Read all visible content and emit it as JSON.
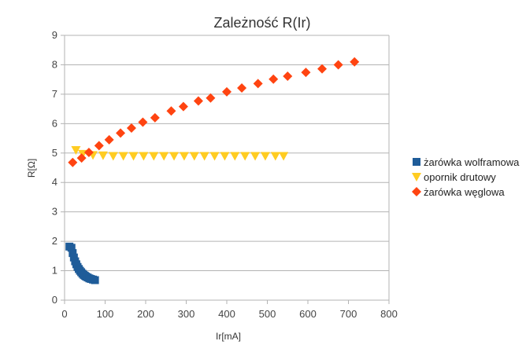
{
  "chart_data": {
    "type": "scatter",
    "title": "Zależność R(Ir)",
    "xlabel": "Ir[mA]",
    "ylabel": "R[Ω]",
    "xlim": [
      0,
      800
    ],
    "ylim": [
      0,
      9
    ],
    "x_ticks": [
      0,
      100,
      200,
      300,
      400,
      500,
      600,
      700,
      800
    ],
    "y_ticks": [
      0,
      1,
      2,
      3,
      4,
      5,
      6,
      7,
      8,
      9
    ],
    "grid": "horizontal",
    "legend_position": "right",
    "series": [
      {
        "name": "żarówka wolframowa",
        "marker": "square",
        "color": "#1f5c99",
        "points": [
          [
            12,
            1.82
          ],
          [
            17,
            1.78
          ],
          [
            20,
            1.6
          ],
          [
            23,
            1.45
          ],
          [
            26,
            1.32
          ],
          [
            29,
            1.22
          ],
          [
            32,
            1.13
          ],
          [
            35,
            1.06
          ],
          [
            38,
            1.0
          ],
          [
            41,
            0.95
          ],
          [
            44,
            0.9
          ],
          [
            47,
            0.86
          ],
          [
            50,
            0.83
          ],
          [
            53,
            0.8
          ],
          [
            57,
            0.77
          ],
          [
            61,
            0.74
          ],
          [
            65,
            0.72
          ],
          [
            70,
            0.7
          ],
          [
            75,
            0.68
          ]
        ]
      },
      {
        "name": "opornik drutowy",
        "marker": "triangle-down",
        "color": "#ffcc22",
        "points": [
          [
            28,
            5.1
          ],
          [
            45,
            4.97
          ],
          [
            70,
            4.93
          ],
          [
            95,
            4.92
          ],
          [
            120,
            4.9
          ],
          [
            145,
            4.9
          ],
          [
            170,
            4.9
          ],
          [
            195,
            4.9
          ],
          [
            220,
            4.9
          ],
          [
            245,
            4.9
          ],
          [
            270,
            4.9
          ],
          [
            295,
            4.9
          ],
          [
            320,
            4.9
          ],
          [
            345,
            4.9
          ],
          [
            370,
            4.9
          ],
          [
            395,
            4.9
          ],
          [
            420,
            4.9
          ],
          [
            445,
            4.9
          ],
          [
            470,
            4.9
          ],
          [
            495,
            4.9
          ],
          [
            520,
            4.9
          ],
          [
            540,
            4.9
          ]
        ]
      },
      {
        "name": "żarówka węglowa",
        "marker": "diamond",
        "color": "#ff4411",
        "points": [
          [
            20,
            4.68
          ],
          [
            42,
            4.83
          ],
          [
            60,
            5.02
          ],
          [
            85,
            5.25
          ],
          [
            110,
            5.45
          ],
          [
            138,
            5.68
          ],
          [
            165,
            5.85
          ],
          [
            193,
            6.05
          ],
          [
            223,
            6.2
          ],
          [
            263,
            6.43
          ],
          [
            293,
            6.58
          ],
          [
            330,
            6.77
          ],
          [
            360,
            6.87
          ],
          [
            400,
            7.08
          ],
          [
            437,
            7.21
          ],
          [
            477,
            7.36
          ],
          [
            515,
            7.51
          ],
          [
            550,
            7.61
          ],
          [
            595,
            7.74
          ],
          [
            635,
            7.86
          ],
          [
            675,
            8.0
          ],
          [
            715,
            8.1
          ]
        ]
      }
    ]
  }
}
